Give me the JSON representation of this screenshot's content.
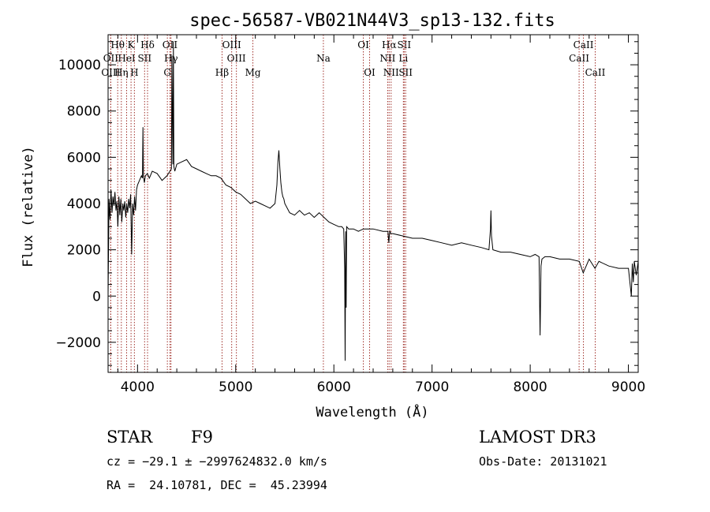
{
  "chart_data": {
    "type": "line",
    "title": "spec-56587-VB021N44V3_sp13-132.fits",
    "xlabel": "Wavelength (Å)",
    "ylabel": "Flux (relative)",
    "xlim": [
      3700,
      9100
    ],
    "ylim": [
      -3300,
      11300
    ],
    "x_ticks": [
      4000,
      5000,
      6000,
      7000,
      8000,
      9000
    ],
    "y_ticks": [
      -2000,
      0,
      2000,
      4000,
      6000,
      8000,
      10000
    ],
    "x_tick_labels": [
      "4000",
      "5000",
      "6000",
      "7000",
      "8000",
      "9000"
    ],
    "y_tick_labels": [
      "−2000",
      "0",
      "2000",
      "4000",
      "6000",
      "8000",
      "10000"
    ],
    "grid": false,
    "line_color": "#000000",
    "marker_color": "#a0302a",
    "line_markers": [
      {
        "label": "Hθ",
        "wavelength": 3798,
        "row": 0
      },
      {
        "label": "K",
        "wavelength": 3934,
        "row": 0
      },
      {
        "label": "Hδ",
        "wavelength": 4102,
        "row": 0
      },
      {
        "label": "OII",
        "wavelength": 4330,
        "row": 0
      },
      {
        "label": "OIII",
        "wavelength": 4959,
        "row": 0
      },
      {
        "label": "OI",
        "wavelength": 6300,
        "row": 0
      },
      {
        "label": "Hα",
        "wavelength": 6563,
        "row": 0
      },
      {
        "label": "SII",
        "wavelength": 6716,
        "row": 0
      },
      {
        "label": "CaII",
        "wavelength": 8542,
        "row": 0
      },
      {
        "label": "OII",
        "wavelength": 3727,
        "row": 1
      },
      {
        "label": "HeI",
        "wavelength": 3889,
        "row": 1
      },
      {
        "label": "SII",
        "wavelength": 4072,
        "row": 1
      },
      {
        "label": "Hγ",
        "wavelength": 4341,
        "row": 1
      },
      {
        "label": "OIII",
        "wavelength": 5007,
        "row": 1
      },
      {
        "label": "Na",
        "wavelength": 5893,
        "row": 1
      },
      {
        "label": "NII",
        "wavelength": 6548,
        "row": 1
      },
      {
        "label": "Li",
        "wavelength": 6708,
        "row": 1
      },
      {
        "label": "CaII",
        "wavelength": 8498,
        "row": 1
      },
      {
        "label": "OIII",
        "wavelength": 3727,
        "row": 2
      },
      {
        "label": "Hη",
        "wavelength": 3835,
        "row": 2
      },
      {
        "label": "H",
        "wavelength": 3968,
        "row": 2
      },
      {
        "label": "G",
        "wavelength": 4304,
        "row": 2
      },
      {
        "label": "Hβ",
        "wavelength": 4861,
        "row": 2
      },
      {
        "label": "Mg",
        "wavelength": 5175,
        "row": 2
      },
      {
        "label": "OI",
        "wavelength": 6364,
        "row": 2
      },
      {
        "label": "NII",
        "wavelength": 6583,
        "row": 2
      },
      {
        "label": "SII",
        "wavelength": 6731,
        "row": 2
      },
      {
        "label": "CaII",
        "wavelength": 8662,
        "row": 2
      }
    ],
    "series": [
      {
        "x": [
          3700,
          3710,
          3720,
          3730,
          3740,
          3750,
          3760,
          3770,
          3780,
          3790,
          3800,
          3810,
          3820,
          3830,
          3840,
          3850,
          3860,
          3870,
          3880,
          3890,
          3900,
          3910,
          3920,
          3930,
          3940,
          3950,
          3960,
          3970,
          3980,
          3990,
          4000,
          4020,
          4040,
          4050,
          4055,
          4060,
          4070,
          4080,
          4100,
          4120,
          4150,
          4200,
          4250,
          4300,
          4330,
          4345,
          4350,
          4360,
          4365,
          4370,
          4380,
          4400,
          4450,
          4500,
          4550,
          4600,
          4650,
          4700,
          4750,
          4800,
          4850,
          4900,
          4950,
          5000,
          5050,
          5100,
          5150,
          5200,
          5250,
          5300,
          5350,
          5400,
          5420,
          5430,
          5440,
          5450,
          5460,
          5470,
          5480,
          5490,
          5500,
          5550,
          5600,
          5650,
          5700,
          5750,
          5800,
          5850,
          5900,
          5950,
          6000,
          6050,
          6080,
          6100,
          6110,
          6115,
          6120,
          6125,
          6130,
          6150,
          6200,
          6250,
          6300,
          6400,
          6500,
          6550,
          6560,
          6565,
          6570,
          6580,
          6600,
          6700,
          6800,
          6900,
          7000,
          7100,
          7200,
          7300,
          7400,
          7500,
          7580,
          7595,
          7600,
          7605,
          7620,
          7700,
          7800,
          7900,
          8000,
          8050,
          8090,
          8100,
          8110,
          8120,
          8150,
          8200,
          8300,
          8400,
          8500,
          8540,
          8600,
          8660,
          8700,
          8800,
          8900,
          9000,
          9030,
          9040,
          9050,
          9060,
          9080,
          9100
        ],
        "y": [
          0,
          4200,
          3300,
          4600,
          3600,
          4300,
          3900,
          4500,
          3700,
          4100,
          3000,
          4300,
          3500,
          4200,
          3200,
          4000,
          3700,
          4100,
          3400,
          4000,
          3600,
          4200,
          3800,
          4400,
          1800,
          4000,
          3500,
          4300,
          3700,
          4600,
          4800,
          5000,
          5200,
          5100,
          7300,
          5200,
          4900,
          5200,
          5300,
          5100,
          5400,
          5300,
          5000,
          5200,
          5400,
          5500,
          10400,
          5700,
          11000,
          5600,
          5400,
          5700,
          5800,
          5900,
          5600,
          5500,
          5400,
          5300,
          5200,
          5200,
          5100,
          4800,
          4700,
          4500,
          4400,
          4200,
          4000,
          4100,
          4000,
          3900,
          3800,
          4000,
          4800,
          5800,
          6300,
          5500,
          4900,
          4500,
          4300,
          4200,
          4000,
          3600,
          3500,
          3700,
          3500,
          3600,
          3400,
          3600,
          3400,
          3200,
          3100,
          3000,
          3000,
          2900,
          1200,
          -2800,
          2800,
          -500,
          3000,
          2900,
          2900,
          2800,
          2900,
          2900,
          2800,
          2800,
          2300,
          2600,
          2800,
          2700,
          2700,
          2600,
          2500,
          2500,
          2400,
          2300,
          2200,
          2300,
          2200,
          2100,
          2000,
          2900,
          3700,
          2600,
          2000,
          1900,
          1900,
          1800,
          1700,
          1800,
          1700,
          -1700,
          1300,
          1600,
          1700,
          1700,
          1600,
          1600,
          1500,
          1000,
          1600,
          1200,
          1500,
          1300,
          1200,
          1200,
          0,
          1400,
          600,
          1500,
          900,
          1500
        ]
      }
    ],
    "bottom_text": {
      "object_class": "STAR",
      "subclass": "F9",
      "survey": "LAMOST DR3",
      "cz": "cz = −29.1 ± −2997624832.0 km/s",
      "obs_date": "Obs-Date: 20131021",
      "radec": "RA =  24.10781, DEC =  45.23994"
    }
  }
}
